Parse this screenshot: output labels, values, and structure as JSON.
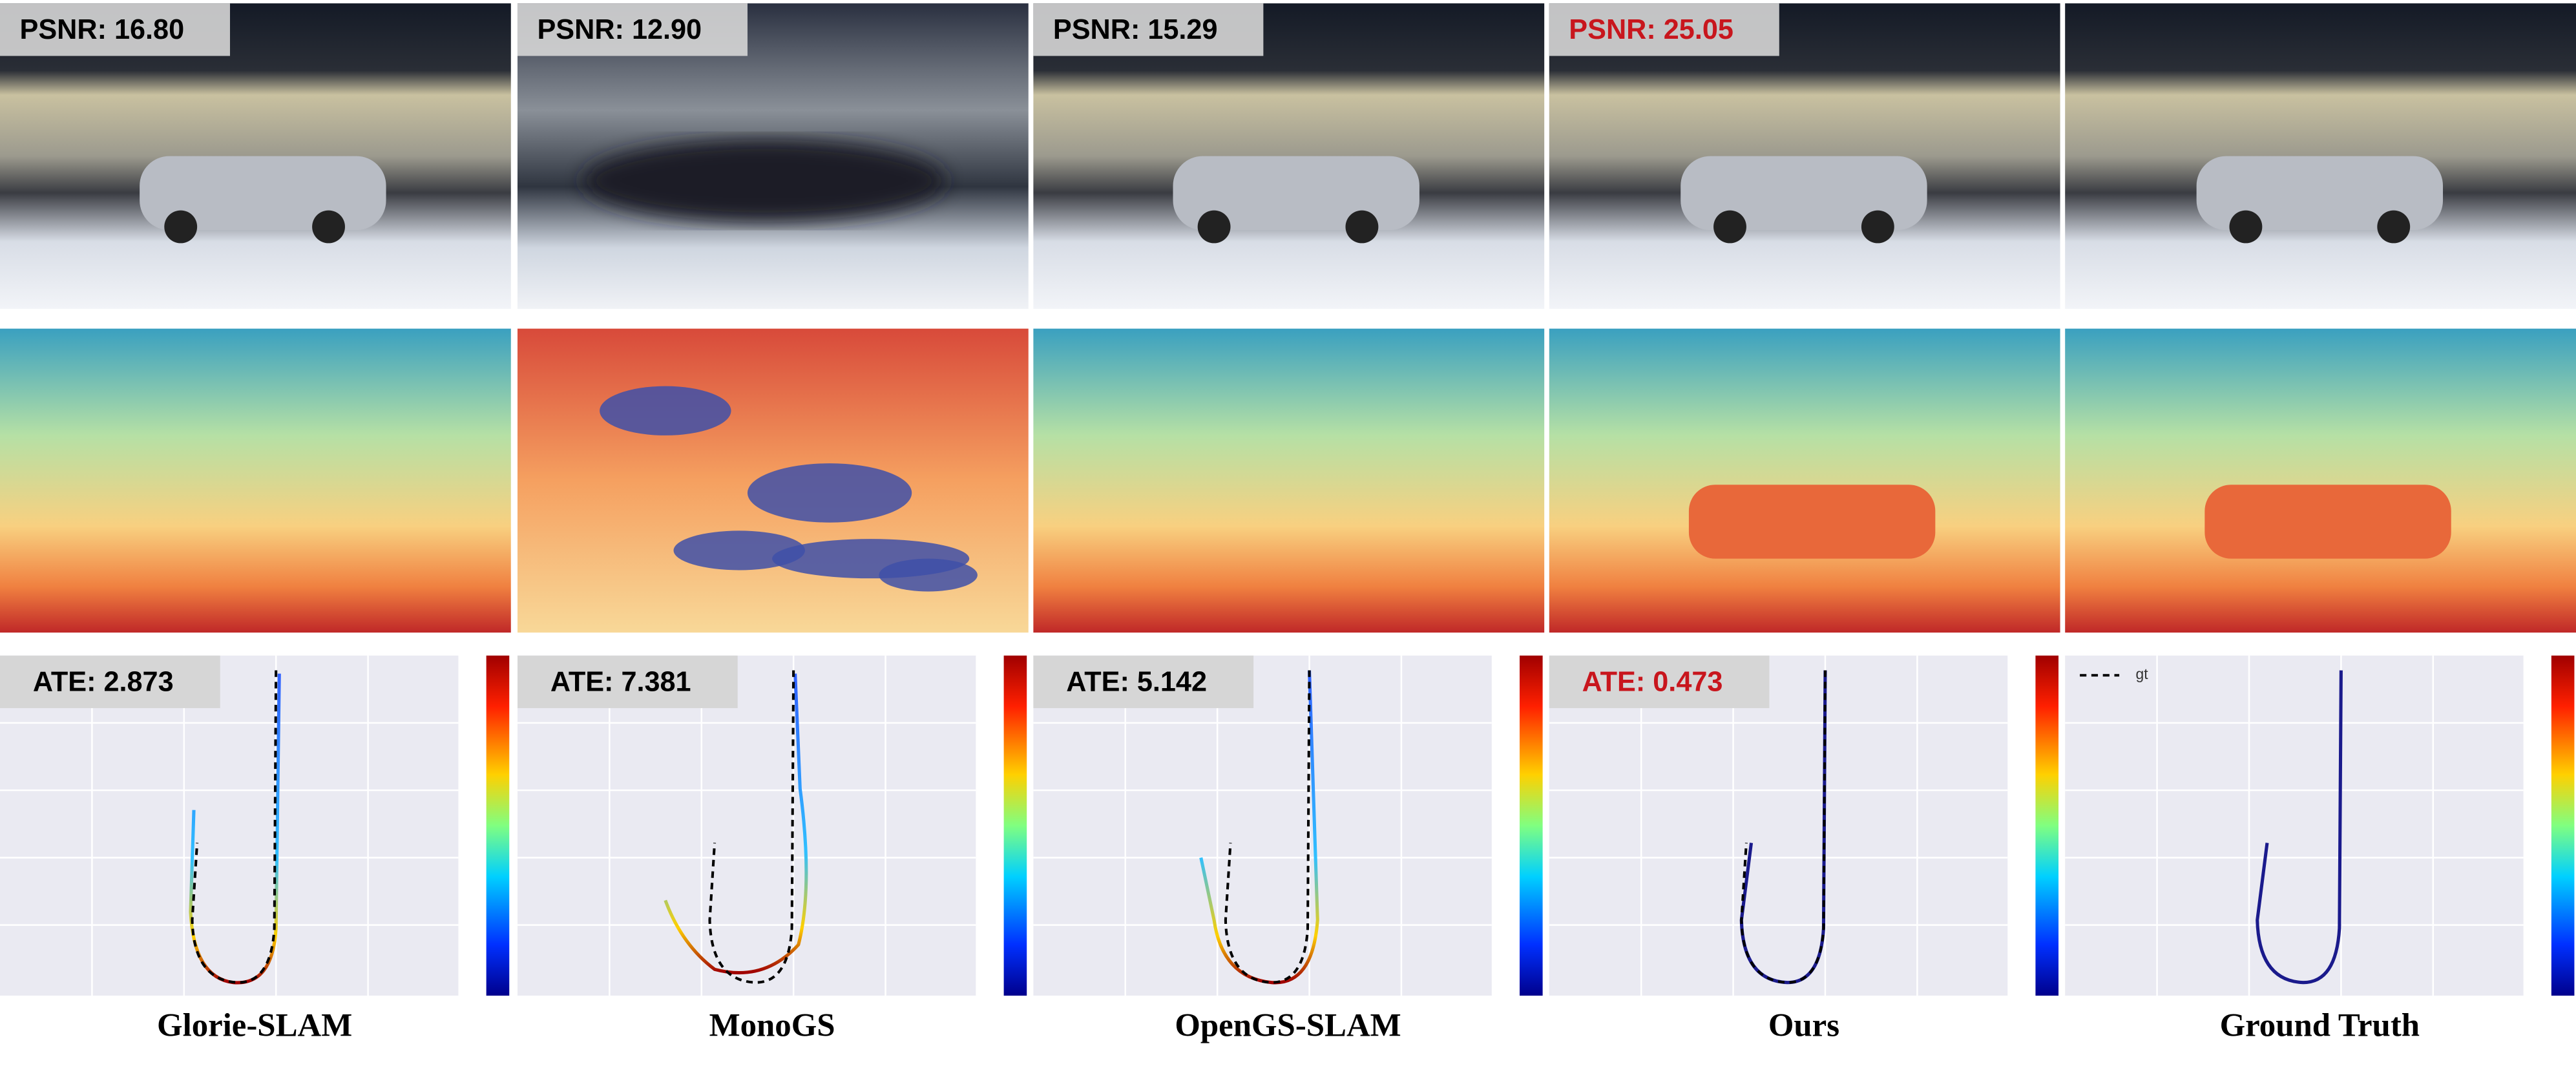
{
  "columns": [
    {
      "name": "Glorie-SLAM",
      "psnr_label": "PSNR: 16.80",
      "ate_label": "ATE: 2.873"
    },
    {
      "name": "MonoGS",
      "psnr_label": "PSNR: 12.90",
      "ate_label": "ATE: 7.381"
    },
    {
      "name": "OpenGS-SLAM",
      "psnr_label": "PSNR: 15.29",
      "ate_label": "ATE: 5.142"
    },
    {
      "name": "Ours",
      "psnr_label": "PSNR: 25.05",
      "ate_label": "ATE: 0.473"
    },
    {
      "name": "Ground Truth"
    }
  ],
  "trajectory_legend": "gt"
}
